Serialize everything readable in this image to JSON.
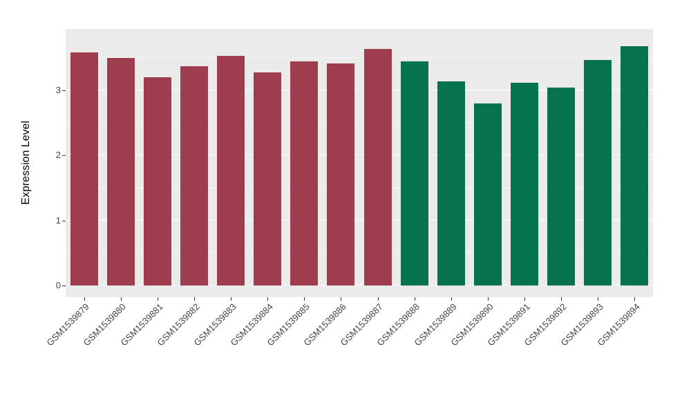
{
  "chart_data": {
    "type": "bar",
    "title": "",
    "xlabel": "",
    "ylabel": "Expression Level",
    "categories": [
      "GSM1539879",
      "GSM1539880",
      "GSM1539881",
      "GSM1539882",
      "GSM1539883",
      "GSM1539884",
      "GSM1539885",
      "GSM1539886",
      "GSM1539887",
      "GSM1539888",
      "GSM1539889",
      "GSM1539890",
      "GSM1539891",
      "GSM1539892",
      "GSM1539893",
      "GSM1539894"
    ],
    "values": [
      3.58,
      3.5,
      3.2,
      3.37,
      3.53,
      3.28,
      3.45,
      3.41,
      3.64,
      3.45,
      3.14,
      2.8,
      3.12,
      3.04,
      3.47,
      3.68
    ],
    "groups": [
      "A",
      "A",
      "A",
      "A",
      "A",
      "A",
      "A",
      "A",
      "A",
      "B",
      "B",
      "B",
      "B",
      "B",
      "B",
      "B"
    ],
    "group_colors": {
      "A": "#9D3D4E",
      "B": "#06734E"
    },
    "ylim": [
      0,
      3.9
    ],
    "yticks": [
      0,
      1,
      2,
      3
    ],
    "yticks_minor": [
      0.5,
      1.5,
      2.5,
      3.5
    ],
    "panel_bg": "#EBEBEB",
    "grid_color": "#FFFFFF",
    "legend": "none"
  }
}
